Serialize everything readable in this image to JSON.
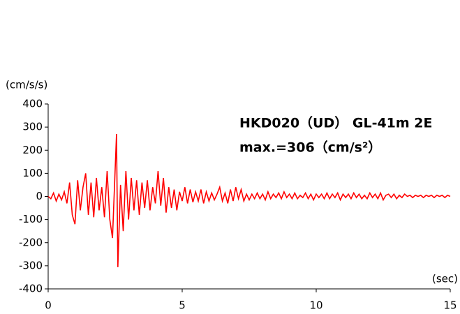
{
  "chart_data": {
    "type": "line",
    "annotations": [
      "HKD020（UD） GL-41m 2E",
      "max.=306（cm/s²）"
    ],
    "y_label": "(cm/s/s)",
    "x_label": "(sec)",
    "xlim": [
      0,
      15
    ],
    "xticks": [
      0,
      5,
      10,
      15
    ],
    "ylim": [
      -400,
      400
    ],
    "yticks": [
      -400,
      -300,
      -200,
      -100,
      0,
      100,
      200,
      300,
      400
    ],
    "grid": false,
    "series": [
      {
        "color": "#ff0000",
        "x": [
          0,
          0.1,
          0.2,
          0.3,
          0.4,
          0.5,
          0.6,
          0.7,
          0.8,
          0.9,
          1.0,
          1.1,
          1.2,
          1.3,
          1.4,
          1.5,
          1.6,
          1.7,
          1.8,
          1.9,
          2.0,
          2.1,
          2.2,
          2.3,
          2.4,
          2.5,
          2.55,
          2.6,
          2.7,
          2.8,
          2.9,
          3.0,
          3.1,
          3.2,
          3.3,
          3.4,
          3.5,
          3.6,
          3.7,
          3.8,
          3.9,
          4.0,
          4.1,
          4.2,
          4.3,
          4.4,
          4.5,
          4.6,
          4.7,
          4.8,
          4.9,
          5.0,
          5.1,
          5.2,
          5.3,
          5.4,
          5.5,
          5.6,
          5.7,
          5.8,
          5.9,
          6.0,
          6.1,
          6.2,
          6.3,
          6.4,
          6.5,
          6.6,
          6.7,
          6.8,
          6.9,
          7.0,
          7.1,
          7.2,
          7.3,
          7.4,
          7.5,
          7.6,
          7.7,
          7.8,
          7.9,
          8.0,
          8.1,
          8.2,
          8.3,
          8.4,
          8.5,
          8.6,
          8.7,
          8.8,
          8.9,
          9.0,
          9.1,
          9.2,
          9.3,
          9.4,
          9.5,
          9.6,
          9.7,
          9.8,
          9.9,
          10.0,
          10.1,
          10.2,
          10.3,
          10.4,
          10.5,
          10.6,
          10.7,
          10.8,
          10.9,
          11.0,
          11.1,
          11.2,
          11.3,
          11.4,
          11.5,
          11.6,
          11.7,
          11.8,
          11.9,
          12.0,
          12.1,
          12.2,
          12.3,
          12.4,
          12.5,
          12.6,
          12.7,
          12.8,
          12.9,
          13.0,
          13.1,
          13.2,
          13.3,
          13.4,
          13.5,
          13.6,
          13.7,
          13.8,
          13.9,
          14.0,
          14.1,
          14.2,
          14.3,
          14.4,
          14.5,
          14.6,
          14.7,
          14.8,
          14.9,
          15.0
        ],
        "values": [
          0,
          -10,
          15,
          -20,
          10,
          -15,
          20,
          -30,
          60,
          -80,
          -120,
          70,
          -60,
          40,
          100,
          -80,
          60,
          -90,
          80,
          -60,
          40,
          -90,
          110,
          -100,
          -180,
          120,
          270,
          -306,
          50,
          -150,
          110,
          -100,
          80,
          -60,
          70,
          -80,
          60,
          -50,
          70,
          -60,
          40,
          -30,
          110,
          -40,
          80,
          -70,
          40,
          -50,
          30,
          -60,
          20,
          -20,
          40,
          -30,
          30,
          -25,
          20,
          -20,
          30,
          -30,
          20,
          -20,
          15,
          -15,
          10,
          40,
          -20,
          15,
          -30,
          30,
          -20,
          40,
          -10,
          30,
          -20,
          10,
          -15,
          10,
          -10,
          15,
          -10,
          10,
          -15,
          20,
          -10,
          10,
          -5,
          15,
          -10,
          20,
          -5,
          10,
          -10,
          15,
          -10,
          5,
          -5,
          15,
          -10,
          10,
          -15,
          10,
          -5,
          10,
          -10,
          15,
          -10,
          10,
          -5,
          15,
          -15,
          10,
          -5,
          10,
          -10,
          15,
          -5,
          10,
          -10,
          5,
          -10,
          15,
          -5,
          10,
          -10,
          15,
          -15,
          5,
          10,
          -5,
          10,
          -10,
          5,
          -5,
          10,
          0,
          5,
          -5,
          5,
          0,
          5,
          -5,
          5,
          0,
          5,
          -5,
          5,
          0,
          5,
          -5,
          5,
          0
        ]
      }
    ]
  }
}
